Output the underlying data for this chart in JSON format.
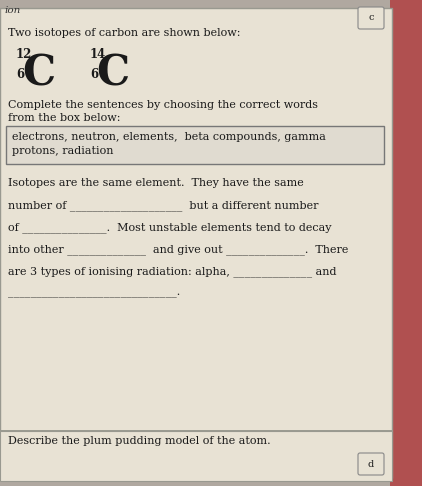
{
  "bg_outer": "#b0a8a0",
  "bg_page": "#e8e2d4",
  "bg_wordbox": "#e0dbd0",
  "font_color": "#1a1a1a",
  "header_text": "ion",
  "title_text": "Two isotopes of carbon are shown below:",
  "isotope1_mass": "12",
  "isotope1_symbol": "C",
  "isotope1_atomic": "6",
  "isotope2_mass": "14",
  "isotope2_symbol": "C",
  "isotope2_atomic": "6",
  "instruction_line1": "Complete the sentences by choosing the correct words",
  "instruction_line2": "from the box below:",
  "word_box_line1": "electrons, neutron, elements,  beta compounds, gamma",
  "word_box_line2": "protons, radiation",
  "para_line1": "Isotopes are the same element.  They have the same",
  "para_line2": "number of ____________________  but a different number",
  "para_line3": "of _______________.  Most unstable elements tend to decay",
  "para_line4": "into other ______________  and give out ______________.  There",
  "para_line5": "are 3 types of ionising radiation: alpha, ______________ and",
  "blank_line": "______________________________.",
  "bottom_text": "Describe the plum pudding model of the atom.",
  "corner_c": "c",
  "corner_d": "d"
}
